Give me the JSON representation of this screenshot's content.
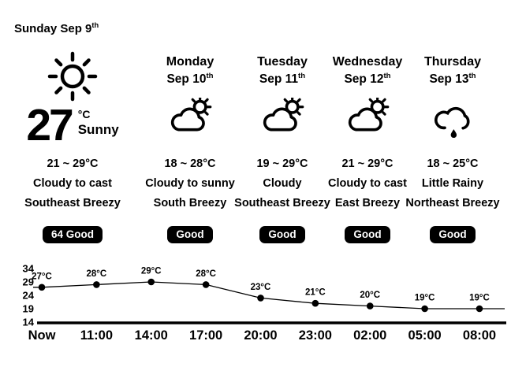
{
  "header": {
    "date": "Sunday Sep 9",
    "date_suffix": "th"
  },
  "current": {
    "temp": "27",
    "unit": "°C",
    "condition": "Sunny",
    "icon": "sun-icon",
    "range": "21 ~ 29°C",
    "sky": "Cloudy to cast",
    "wind": "Southeast Breezy",
    "badge": "64 Good"
  },
  "forecast": [
    {
      "day": "Monday",
      "date": "Sep 10",
      "date_suffix": "th",
      "icon": "partly-cloudy-icon",
      "range": "18 ~ 28°C",
      "sky": "Cloudy to sunny",
      "wind": "South Breezy",
      "badge": "Good"
    },
    {
      "day": "Tuesday",
      "date": "Sep 11",
      "date_suffix": "th",
      "icon": "partly-cloudy-icon",
      "range": "19 ~ 29°C",
      "sky": "Cloudy",
      "wind": "Southeast Breezy",
      "badge": "Good"
    },
    {
      "day": "Wednesday",
      "date": "Sep 12",
      "date_suffix": "th",
      "icon": "partly-cloudy-icon",
      "range": "21 ~ 29°C",
      "sky": "Cloudy to cast",
      "wind": "East Breezy",
      "badge": "Good"
    },
    {
      "day": "Thursday",
      "date": "Sep 13",
      "date_suffix": "th",
      "icon": "rainy-icon",
      "range": "18 ~ 25°C",
      "sky": "Little Rainy",
      "wind": "Northeast Breezy",
      "badge": "Good"
    }
  ],
  "chart_data": {
    "type": "line",
    "x": [
      "Now",
      "11:00",
      "14:00",
      "17:00",
      "20:00",
      "23:00",
      "02:00",
      "05:00",
      "08:00"
    ],
    "values": [
      27,
      28,
      29,
      28,
      23,
      21,
      20,
      19,
      19
    ],
    "point_labels": [
      "27°C",
      "28°C",
      "29°C",
      "28°C",
      "23°C",
      "21°C",
      "20°C",
      "19°C",
      "19°C"
    ],
    "yticks": [
      34,
      29,
      24,
      19,
      14
    ],
    "ylim": [
      14,
      34
    ],
    "grid": false,
    "legend": false,
    "marker": "filled-circle",
    "line_color": "#000000"
  },
  "colors": {
    "bg": "#ffffff",
    "text": "#000000",
    "badge_bg": "#000000",
    "badge_text": "#ffffff"
  }
}
